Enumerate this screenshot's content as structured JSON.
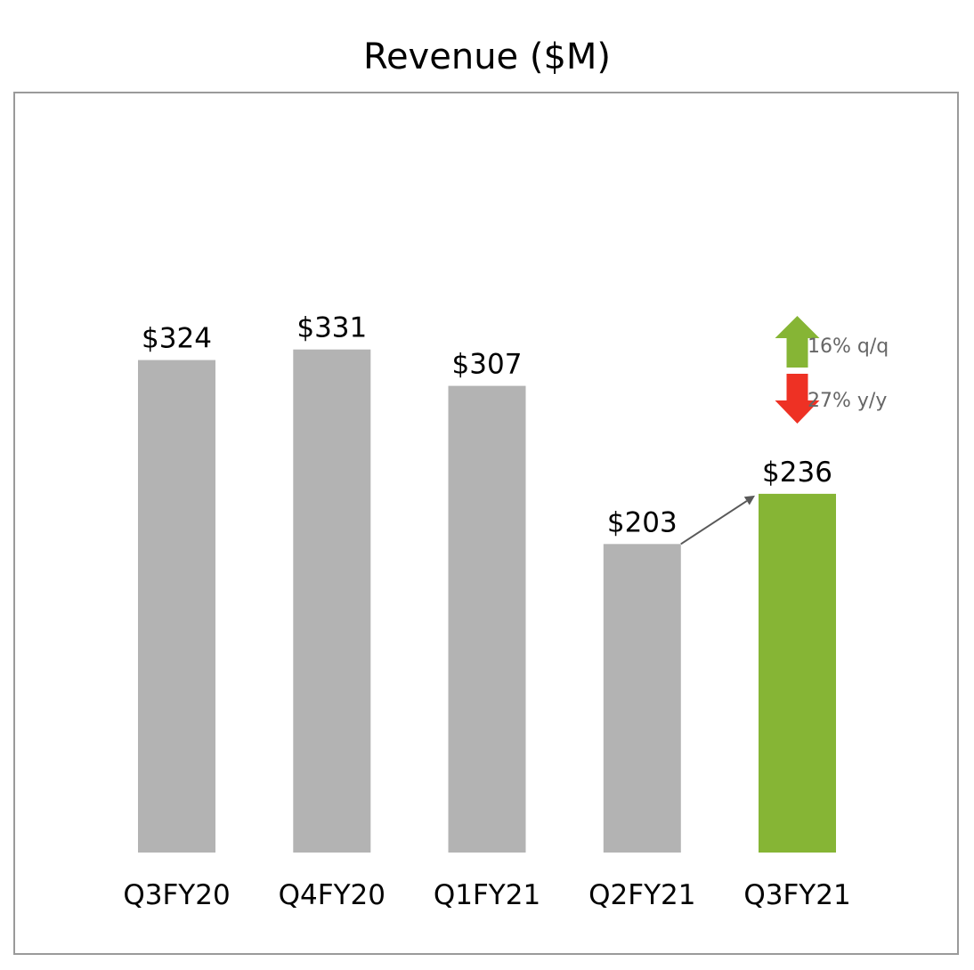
{
  "chart_data": {
    "type": "bar",
    "title": "Revenue ($M)",
    "categories": [
      "Q3FY20",
      "Q4FY20",
      "Q1FY21",
      "Q2FY21",
      "Q3FY21"
    ],
    "values": [
      324,
      331,
      307,
      203,
      236
    ],
    "value_labels": [
      "$324",
      "$331",
      "$307",
      "$203",
      "$236"
    ],
    "unit": "$M",
    "highlight_index": 4,
    "ylim": [
      0,
      500
    ],
    "grid": false,
    "annotations": {
      "qoq": {
        "text": "16% q/q",
        "direction": "up",
        "color": "#86b535"
      },
      "yoy": {
        "text": "27% y/y",
        "direction": "down",
        "color": "#ee3124"
      },
      "arrow_from_category": "Q2FY21",
      "arrow_to_category": "Q3FY21"
    }
  },
  "colors": {
    "bar": "#b3b3b3",
    "highlight_bar": "#86b535",
    "frame": "#9a9a9a",
    "connector": "#595959"
  }
}
